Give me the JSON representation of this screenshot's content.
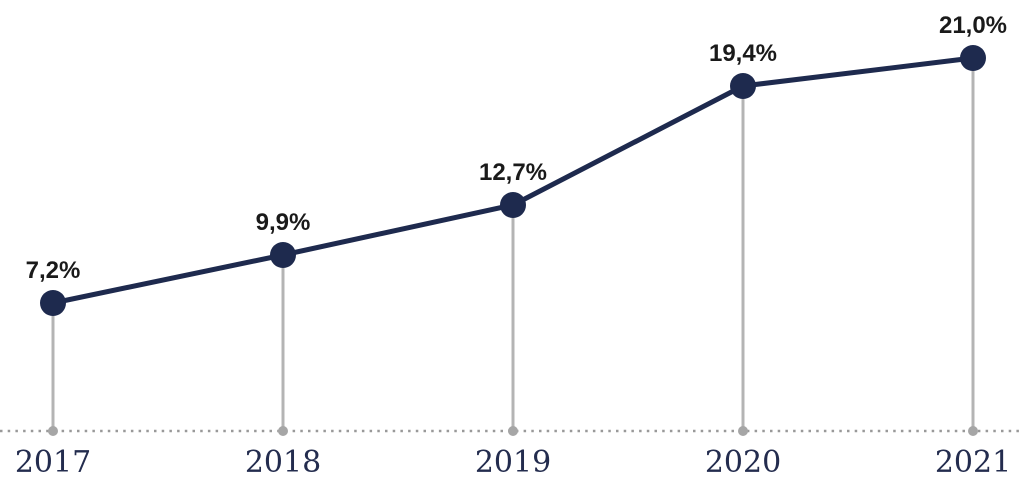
{
  "chart_data": {
    "type": "line",
    "categories": [
      "2017",
      "2018",
      "2019",
      "2020",
      "2021"
    ],
    "values": [
      7.2,
      9.9,
      12.7,
      19.4,
      21.0
    ],
    "point_labels": [
      "7,2%",
      "9,9%",
      "12,7%",
      "19,4%",
      "21,0%"
    ],
    "decimal_separator": ",",
    "unit": "%",
    "title": "",
    "xlabel": "",
    "ylabel": "",
    "ylim": [
      0,
      24
    ],
    "grid": false,
    "legend_position": "none",
    "baseline_style": "dotted",
    "colors": {
      "line": "#1e2a4e",
      "marker": "#1e2a4e",
      "point_label": "#1a1a1a",
      "year_label": "#232c4e",
      "stem": "#b4b4b4",
      "stem_base_dot": "#a6a6a6",
      "baseline_dots": "#999999",
      "background": "#ffffff"
    }
  }
}
